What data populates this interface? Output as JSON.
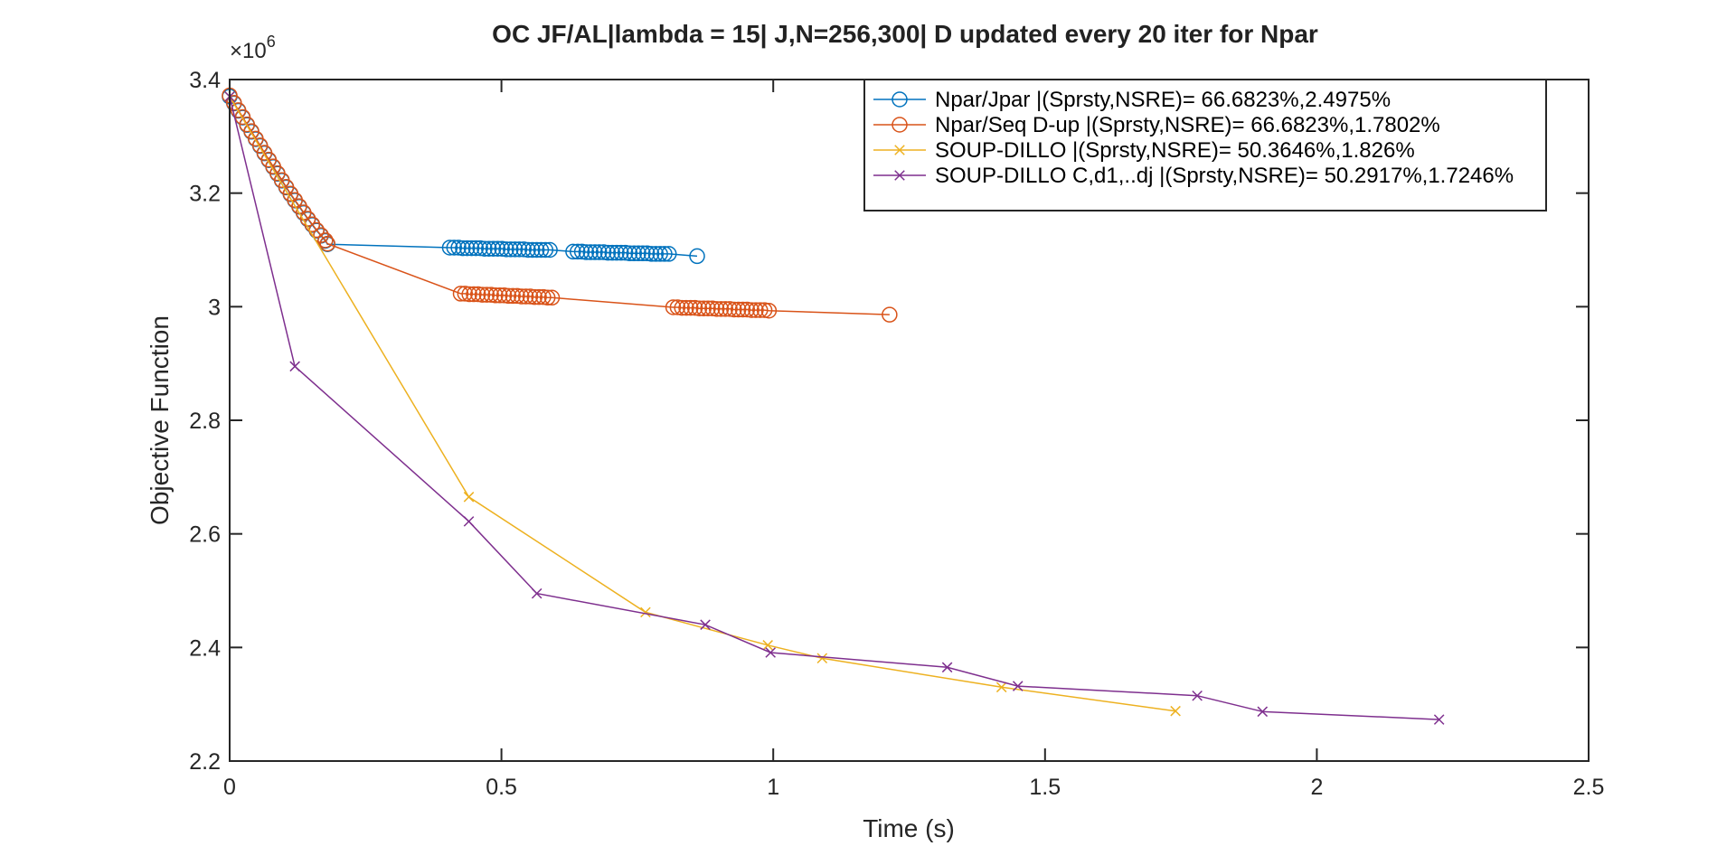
{
  "chart_data": {
    "type": "line",
    "title": "OC JF/AL|lambda = 15| J,N=256,300| D updated every 20 iter for Npar",
    "xlabel": "Time (s)",
    "ylabel": "Objective Function",
    "y_exponent_label": "×10",
    "y_exponent_power": "6",
    "xlim": [
      0,
      2.5
    ],
    "ylim": [
      2.2,
      3.4
    ],
    "xticks": [
      0,
      0.5,
      1,
      1.5,
      2,
      2.5
    ],
    "xtick_labels": [
      "0",
      "0.5",
      "1",
      "1.5",
      "2",
      "2.5"
    ],
    "yticks": [
      2.2,
      2.4,
      2.6,
      2.8,
      3.0,
      3.2,
      3.4
    ],
    "ytick_labels": [
      "2.2",
      "2.4",
      "2.6",
      "2.8",
      "3",
      "3.2",
      "3.4"
    ],
    "grid": false,
    "legend_position": "top-right",
    "series": [
      {
        "name": "Npar/Jpar |(Sprsty,NSRE)= 66.6823%,2.4975%",
        "color": "#0072BD",
        "marker": "circle",
        "x": [
          0.0,
          0.008,
          0.016,
          0.024,
          0.032,
          0.04,
          0.048,
          0.056,
          0.064,
          0.072,
          0.08,
          0.088,
          0.096,
          0.104,
          0.112,
          0.12,
          0.128,
          0.136,
          0.144,
          0.152,
          0.16,
          0.168,
          0.176,
          0.18,
          0.405,
          0.413,
          0.421,
          0.429,
          0.437,
          0.445,
          0.453,
          0.461,
          0.469,
          0.477,
          0.485,
          0.493,
          0.501,
          0.509,
          0.517,
          0.525,
          0.533,
          0.541,
          0.549,
          0.557,
          0.565,
          0.573,
          0.581,
          0.589,
          0.632,
          0.64,
          0.648,
          0.656,
          0.664,
          0.672,
          0.68,
          0.688,
          0.696,
          0.704,
          0.712,
          0.72,
          0.728,
          0.736,
          0.744,
          0.752,
          0.76,
          0.768,
          0.776,
          0.784,
          0.792,
          0.8,
          0.808,
          0.86
        ],
        "y": [
          3.37,
          3.358,
          3.345,
          3.333,
          3.32,
          3.308,
          3.295,
          3.283,
          3.27,
          3.258,
          3.246,
          3.234,
          3.222,
          3.21,
          3.198,
          3.187,
          3.176,
          3.165,
          3.154,
          3.144,
          3.134,
          3.125,
          3.116,
          3.11,
          3.104,
          3.104,
          3.104,
          3.103,
          3.103,
          3.103,
          3.103,
          3.103,
          3.102,
          3.102,
          3.102,
          3.102,
          3.102,
          3.101,
          3.101,
          3.101,
          3.101,
          3.101,
          3.1,
          3.1,
          3.1,
          3.1,
          3.1,
          3.1,
          3.097,
          3.097,
          3.097,
          3.096,
          3.096,
          3.096,
          3.096,
          3.096,
          3.095,
          3.095,
          3.095,
          3.095,
          3.095,
          3.094,
          3.094,
          3.094,
          3.094,
          3.094,
          3.093,
          3.093,
          3.093,
          3.093,
          3.093,
          3.089
        ]
      },
      {
        "name": "Npar/Seq D-up |(Sprsty,NSRE)= 66.6823%,1.7802%",
        "color": "#D95319",
        "marker": "circle",
        "x": [
          0.0,
          0.008,
          0.016,
          0.024,
          0.032,
          0.04,
          0.048,
          0.056,
          0.064,
          0.072,
          0.08,
          0.088,
          0.096,
          0.104,
          0.112,
          0.12,
          0.128,
          0.136,
          0.144,
          0.152,
          0.16,
          0.168,
          0.176,
          0.18,
          0.425,
          0.433,
          0.441,
          0.449,
          0.457,
          0.465,
          0.473,
          0.481,
          0.489,
          0.497,
          0.505,
          0.513,
          0.521,
          0.529,
          0.537,
          0.545,
          0.553,
          0.561,
          0.569,
          0.577,
          0.585,
          0.593,
          0.816,
          0.824,
          0.832,
          0.84,
          0.848,
          0.856,
          0.864,
          0.872,
          0.88,
          0.888,
          0.896,
          0.904,
          0.912,
          0.92,
          0.928,
          0.936,
          0.944,
          0.952,
          0.96,
          0.968,
          0.976,
          0.984,
          0.992,
          1.214
        ],
        "y": [
          3.372,
          3.359,
          3.346,
          3.334,
          3.321,
          3.309,
          3.296,
          3.284,
          3.271,
          3.259,
          3.247,
          3.235,
          3.223,
          3.211,
          3.199,
          3.188,
          3.177,
          3.166,
          3.155,
          3.145,
          3.135,
          3.126,
          3.117,
          3.111,
          3.023,
          3.023,
          3.022,
          3.022,
          3.022,
          3.021,
          3.021,
          3.021,
          3.02,
          3.02,
          3.02,
          3.019,
          3.019,
          3.019,
          3.018,
          3.018,
          3.018,
          3.017,
          3.017,
          3.017,
          3.016,
          3.016,
          2.999,
          2.999,
          2.998,
          2.998,
          2.998,
          2.998,
          2.997,
          2.997,
          2.997,
          2.997,
          2.996,
          2.996,
          2.996,
          2.996,
          2.995,
          2.995,
          2.995,
          2.995,
          2.994,
          2.994,
          2.994,
          2.994,
          2.993,
          2.986
        ]
      },
      {
        "name": "SOUP-DILLO |(Sprsty,NSRE)= 50.3646%,1.826%",
        "color": "#EDB120",
        "marker": "x",
        "x": [
          0.0,
          0.44,
          0.765,
          0.99,
          1.09,
          1.42,
          1.74
        ],
        "y": [
          3.37,
          2.665,
          2.462,
          2.404,
          2.381,
          2.33,
          2.288
        ]
      },
      {
        "name": "SOUP-DILLO C,d1,..dj |(Sprsty,NSRE)= 50.2917%,1.7246%",
        "color": "#7E2F8E",
        "marker": "x",
        "x": [
          0.0,
          0.12,
          0.44,
          0.565,
          0.875,
          0.995,
          1.32,
          1.45,
          1.78,
          1.9,
          2.225
        ],
        "y": [
          3.37,
          2.895,
          2.622,
          2.495,
          2.44,
          2.391,
          2.365,
          2.332,
          2.315,
          2.287,
          2.273
        ]
      }
    ]
  }
}
